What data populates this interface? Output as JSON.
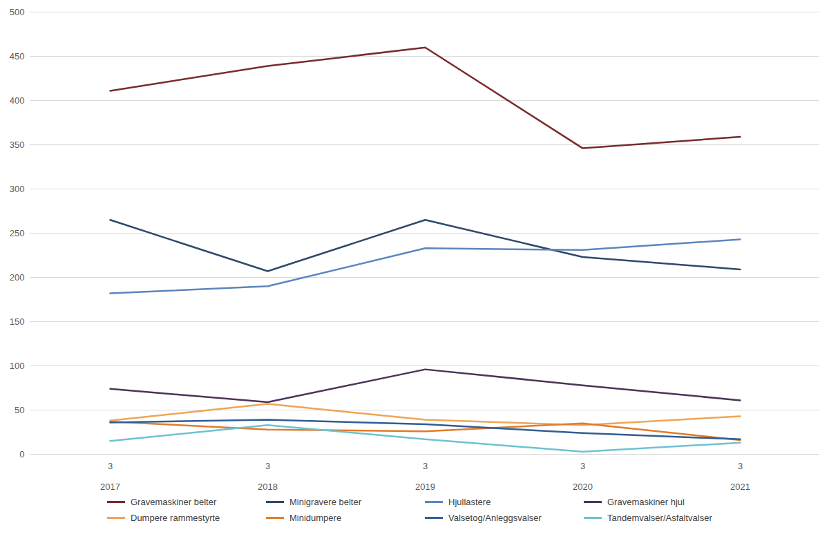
{
  "chart_data": {
    "type": "line",
    "categories": [
      "2017",
      "2018",
      "2019",
      "2020",
      "2021"
    ],
    "quarters": [
      "3",
      "3",
      "3",
      "3",
      "3"
    ],
    "series": [
      {
        "name": "Gravemaskiner belter",
        "color": "#7a2b2b",
        "values": [
          411,
          439,
          460,
          346,
          359
        ]
      },
      {
        "name": "Minigravere belter",
        "color": "#2d4a6a",
        "values": [
          265,
          207,
          265,
          223,
          209
        ]
      },
      {
        "name": "Hjullastere",
        "color": "#5b86bd",
        "values": [
          182,
          190,
          233,
          231,
          243
        ]
      },
      {
        "name": "Gravemaskiner hjul",
        "color": "#4b3458",
        "values": [
          74,
          59,
          96,
          78,
          61
        ]
      },
      {
        "name": "Dumpere rammestyrte",
        "color": "#f0a455",
        "values": [
          38,
          57,
          39,
          33,
          43
        ]
      },
      {
        "name": "Minidumpere",
        "color": "#e27b27",
        "values": [
          37,
          28,
          26,
          35,
          16
        ]
      },
      {
        "name": "Valsetog/Anleggsvalser",
        "color": "#2f5d95",
        "values": [
          36,
          39,
          34,
          24,
          17
        ]
      },
      {
        "name": "Tandemvalser/Asfaltvalser",
        "color": "#6ec2d2",
        "values": [
          15,
          33,
          17,
          3,
          13
        ]
      }
    ],
    "ylim": [
      0,
      500
    ],
    "yticks": [
      0,
      50,
      100,
      150,
      200,
      250,
      300,
      350,
      400,
      450,
      500
    ],
    "grid": true,
    "legend": "bottom"
  }
}
